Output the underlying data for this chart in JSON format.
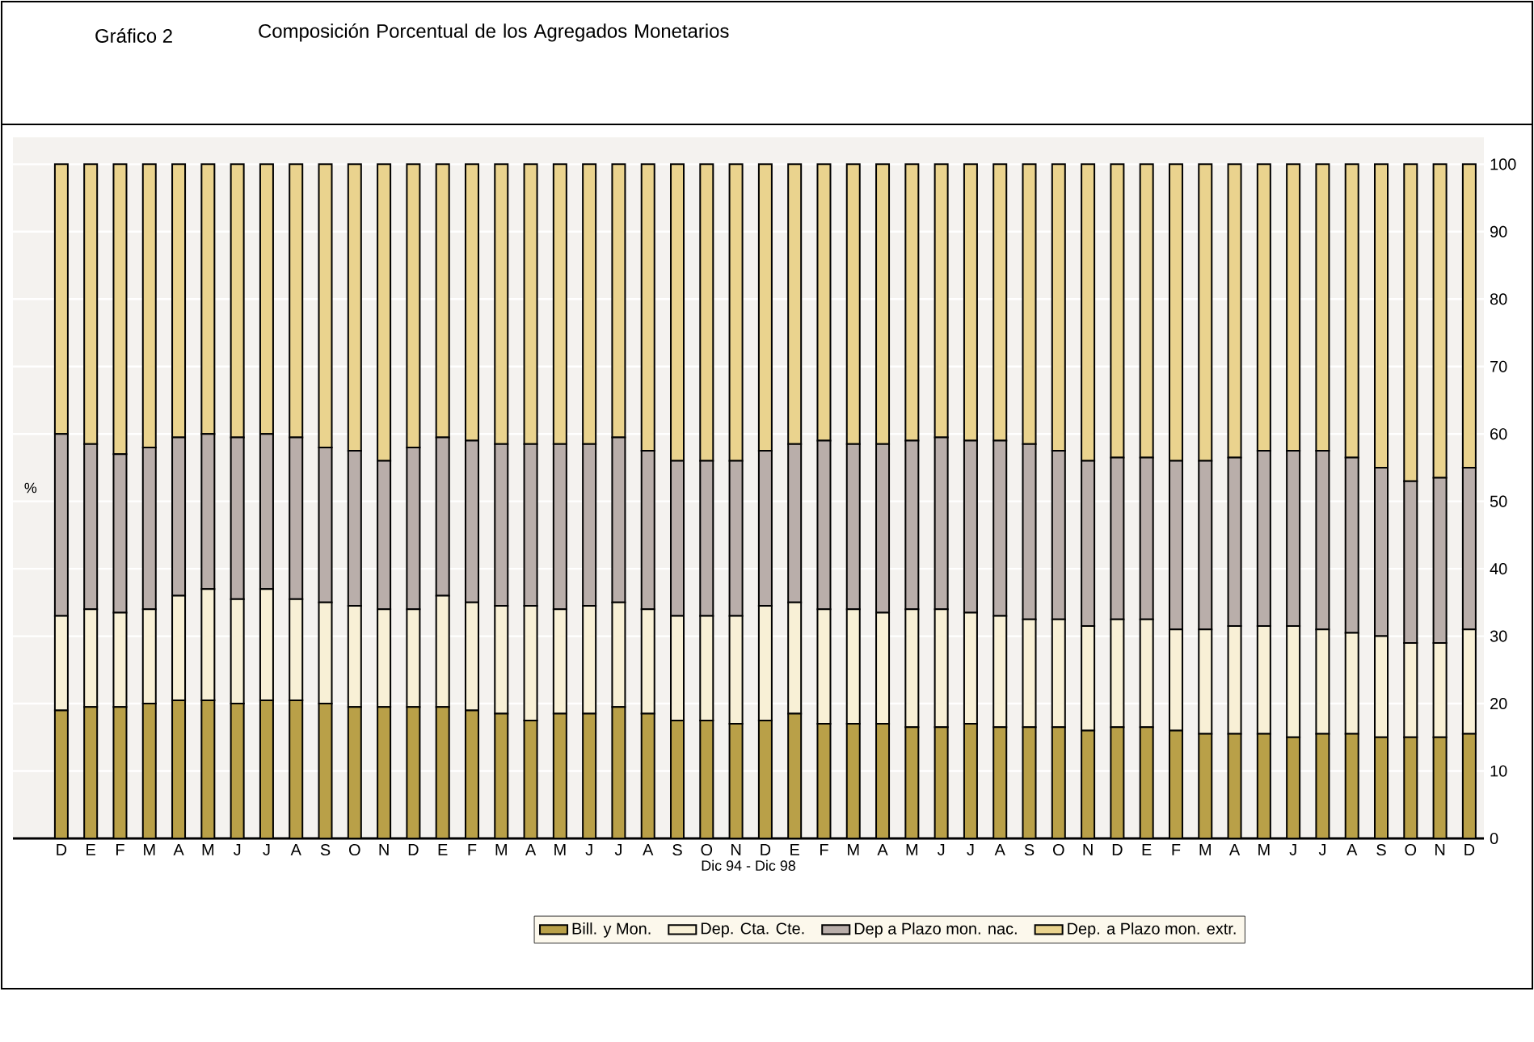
{
  "chart_data": {
    "type": "bar",
    "stacked": true,
    "title": "Gráfico 2",
    "subtitle": "Composición Porcentual de los Agregados Monetarios",
    "xlabel": "Dic 94 - Dic 98",
    "ylabel": "%",
    "categories": [
      "D",
      "E",
      "F",
      "M",
      "A",
      "M",
      "J",
      "J",
      "A",
      "S",
      "O",
      "N",
      "D",
      "E",
      "F",
      "M",
      "A",
      "M",
      "J",
      "J",
      "A",
      "S",
      "O",
      "N",
      "D",
      "E",
      "F",
      "M",
      "A",
      "M",
      "J",
      "J",
      "A",
      "S",
      "O",
      "N",
      "D",
      "E",
      "F",
      "M",
      "A",
      "M",
      "J",
      "J",
      "A",
      "S",
      "O",
      "N",
      "D"
    ],
    "series": [
      {
        "name": "Bill. y Mon.",
        "color": "#b9a048",
        "values": [
          19,
          19.5,
          19.5,
          20,
          20.5,
          20.5,
          20,
          20.5,
          20.5,
          20,
          19.5,
          19.5,
          19.5,
          19.5,
          19,
          18.5,
          17.5,
          18.5,
          18.5,
          19.5,
          18.5,
          17.5,
          17.5,
          17,
          17.5,
          18.5,
          17,
          17,
          17,
          16.5,
          16.5,
          17,
          16.5,
          16.5,
          16.5,
          16,
          16.5,
          16.5,
          16,
          15.5,
          15.5,
          15.5,
          15,
          15.5,
          15.5,
          15,
          15,
          15,
          15.5
        ]
      },
      {
        "name": "Dep. Cta. Cte.",
        "color": "#f8f0d6",
        "values": [
          14,
          14.5,
          14,
          14,
          15.5,
          16.5,
          15.5,
          16.5,
          15,
          15,
          15,
          14.5,
          14.5,
          16.5,
          16,
          16,
          17,
          15.5,
          16,
          15.5,
          15.5,
          15.5,
          15.5,
          16,
          17,
          16.5,
          17,
          17,
          16.5,
          17.5,
          17.5,
          16.5,
          16.5,
          16,
          16,
          15.5,
          16,
          16,
          15,
          15.5,
          16,
          16,
          16.5,
          15.5,
          15,
          15,
          14,
          14,
          15.5
        ]
      },
      {
        "name": "Dep a Plazo mon. nac.",
        "color": "#b9aeaa",
        "values": [
          27,
          24.5,
          23.5,
          24,
          23.5,
          23,
          24,
          23,
          24,
          23,
          23,
          22,
          24,
          23.5,
          24,
          24,
          24,
          24.5,
          24,
          24.5,
          23.5,
          23,
          23,
          23,
          23,
          23.5,
          25,
          24.5,
          25,
          25,
          25.5,
          25.5,
          26,
          26,
          25,
          24.5,
          24,
          24,
          25,
          25,
          25,
          26,
          26,
          26.5,
          26,
          25,
          24,
          24.5,
          24
        ]
      },
      {
        "name": "Dep. a Plazo mon. extr.",
        "color": "#ead38e",
        "values": [
          40,
          41.5,
          43,
          42,
          40.5,
          40,
          40.5,
          40,
          40.5,
          42,
          42.5,
          44,
          42,
          40.5,
          41,
          41.5,
          41.5,
          41.5,
          41.5,
          40.5,
          42.5,
          44,
          44,
          44,
          42.5,
          41.5,
          41,
          41.5,
          41.5,
          41,
          40.5,
          41,
          41,
          41.5,
          42.5,
          44,
          43.5,
          43.5,
          44,
          44,
          43.5,
          42.5,
          42.5,
          42.5,
          43.5,
          45,
          47,
          46.5,
          45
        ]
      }
    ],
    "ylim": [
      0,
      104
    ],
    "yticks": [
      0,
      10,
      20,
      30,
      40,
      50,
      60,
      70,
      80,
      90,
      100
    ],
    "grid": "y",
    "legend": "bottom"
  }
}
